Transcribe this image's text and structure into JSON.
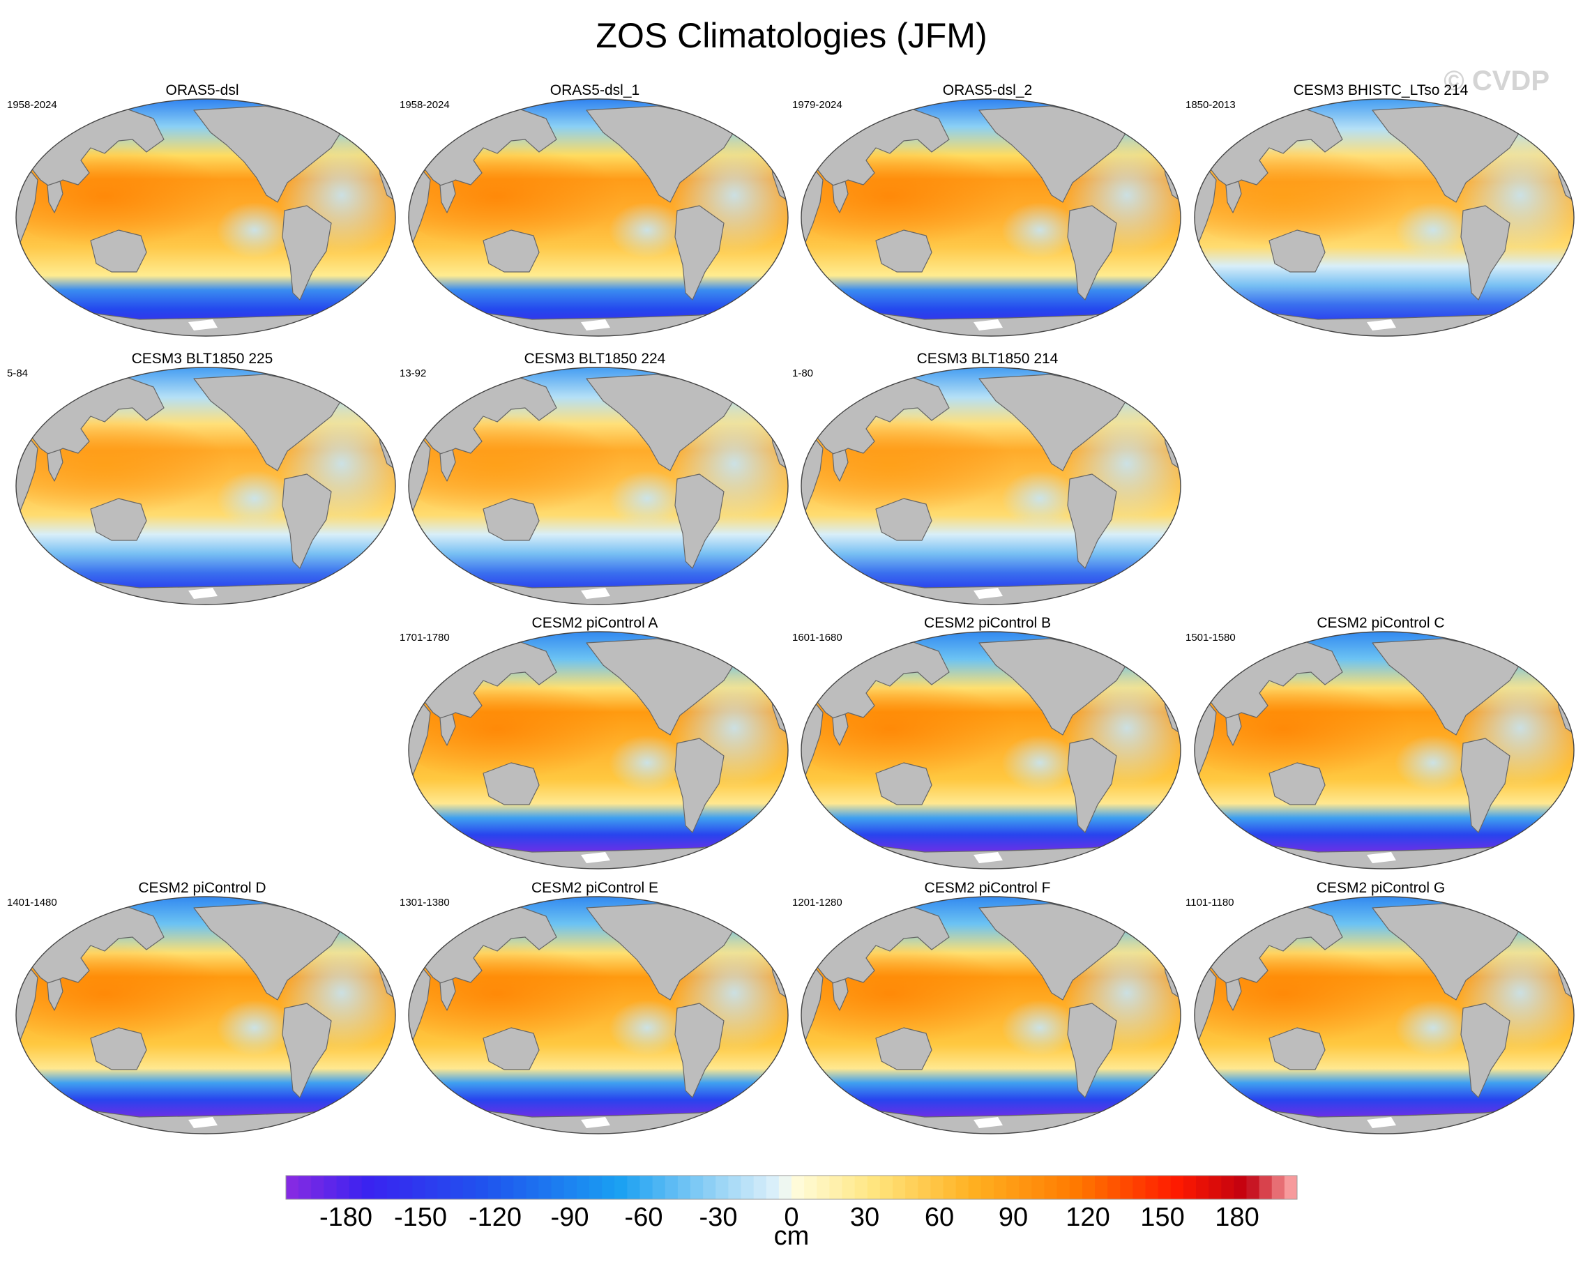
{
  "title": "ZOS Climatologies (JFM)",
  "watermark": "© CVDP",
  "panels": [
    {
      "name": "ORAS5-dsl",
      "years": "1958-2024",
      "type": "oras"
    },
    {
      "name": "ORAS5-dsl_1",
      "years": "1958-2024",
      "type": "oras"
    },
    {
      "name": "ORAS5-dsl_2",
      "years": "1979-2024",
      "type": "oras"
    },
    {
      "name": "CESM3 BHISTC_LTso 214",
      "years": "1850-2013",
      "type": "cesm3"
    },
    {
      "name": "CESM3 BLT1850 225",
      "years": "5-84",
      "type": "cesm3"
    },
    {
      "name": "CESM3 BLT1850 224",
      "years": "13-92",
      "type": "cesm3"
    },
    {
      "name": "CESM3 BLT1850 214",
      "years": "1-80",
      "type": "cesm3"
    },
    {
      "name": "CESM2 piControl A",
      "years": "1701-1780",
      "type": "cesm2"
    },
    {
      "name": "CESM2 piControl B",
      "years": "1601-1680",
      "type": "cesm2"
    },
    {
      "name": "CESM2 piControl C",
      "years": "1501-1580",
      "type": "cesm2"
    },
    {
      "name": "CESM2 piControl D",
      "years": "1401-1480",
      "type": "cesm2"
    },
    {
      "name": "CESM2 piControl E",
      "years": "1301-1380",
      "type": "cesm2"
    },
    {
      "name": "CESM2 piControl F",
      "years": "1201-1280",
      "type": "cesm2"
    },
    {
      "name": "CESM2 piControl G",
      "years": "1101-1180",
      "type": "cesm2"
    }
  ],
  "colorbar": {
    "units": "cm",
    "min": -200,
    "max": 200,
    "step": 5,
    "labels": [
      "-180",
      "-150",
      "-120",
      "-90",
      "-60",
      "-30",
      "0",
      "30",
      "60",
      "90",
      "120",
      "150",
      "180"
    ]
  },
  "colors": {
    "land": "#bdbdbd",
    "coast": "#666666",
    "antarctica_gap": "#ffffff"
  }
}
